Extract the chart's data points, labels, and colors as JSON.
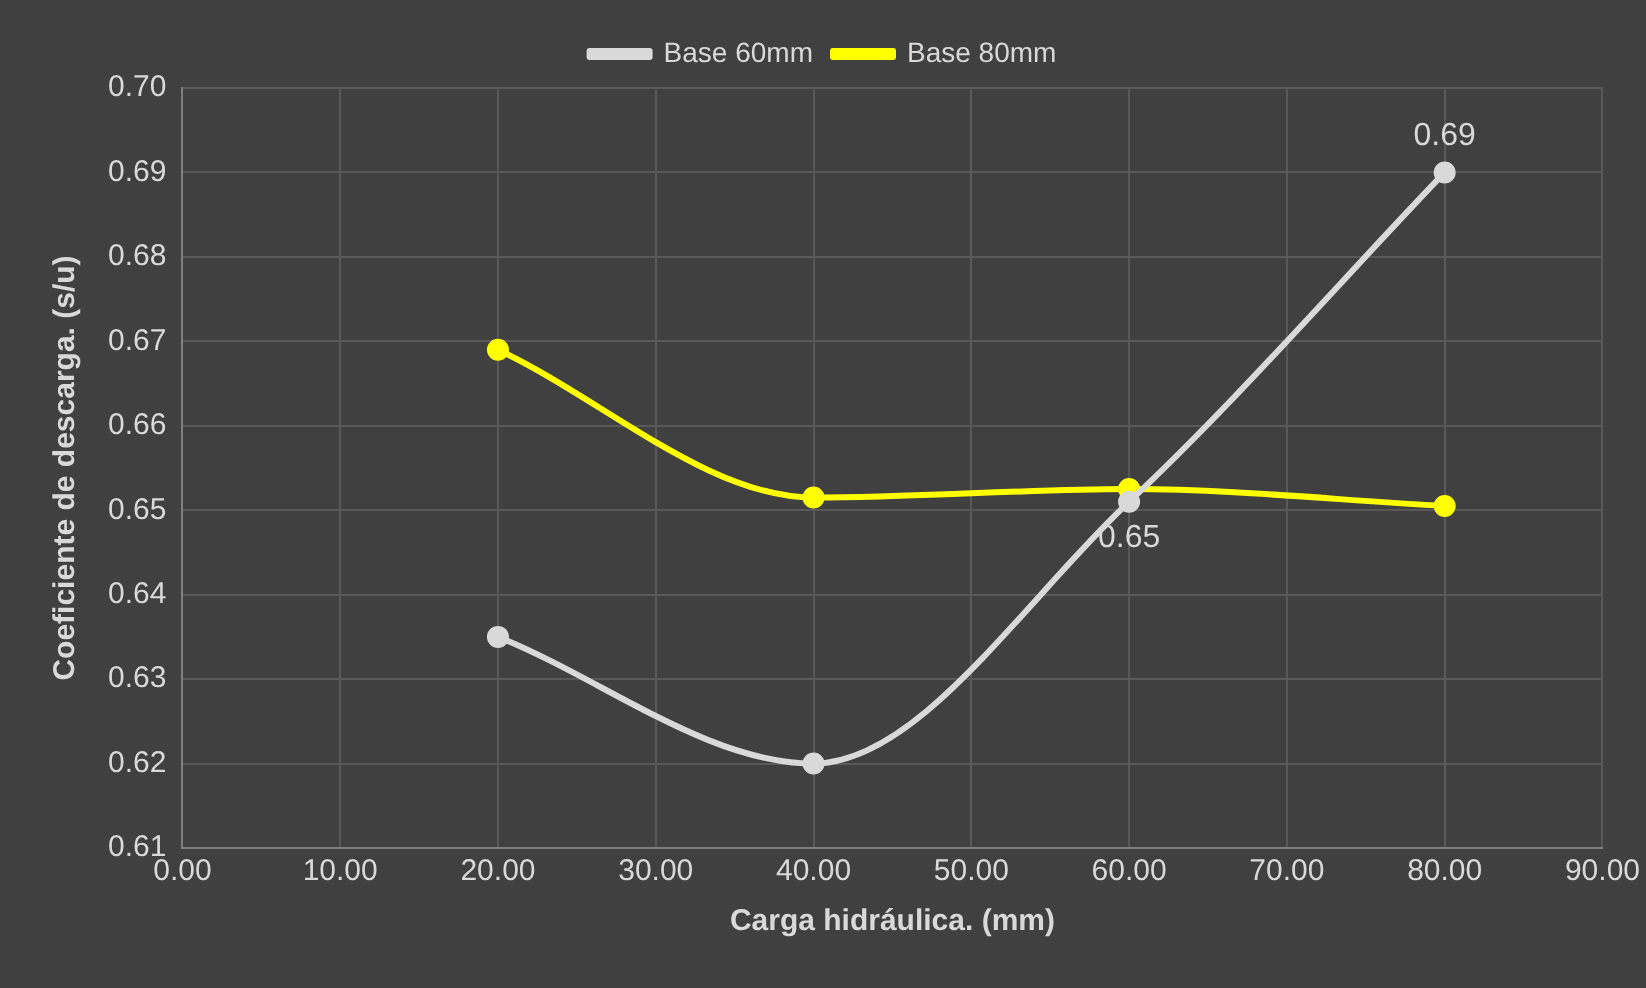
{
  "chart_data": {
    "type": "line",
    "xlabel": "Carga hidráulica. (mm)",
    "ylabel": "Coeficiente de descarga. (s/u)",
    "x": [
      20,
      40,
      60,
      80
    ],
    "series": [
      {
        "name": "Base 60mm",
        "color": "#d9d9d9",
        "values": [
          0.635,
          0.62,
          0.651,
          0.69
        ],
        "value_labels": [
          null,
          null,
          "0.65",
          "0.69"
        ]
      },
      {
        "name": "Base 80mm",
        "color": "#ffff00",
        "values": [
          0.669,
          0.6515,
          0.6525,
          0.6505
        ]
      }
    ],
    "xlim": [
      0,
      90
    ],
    "xticks": [
      {
        "value": 0,
        "label": "0.00"
      },
      {
        "value": 10,
        "label": "10.00"
      },
      {
        "value": 20,
        "label": "20.00"
      },
      {
        "value": 30,
        "label": "30.00"
      },
      {
        "value": 40,
        "label": "40.00"
      },
      {
        "value": 50,
        "label": "50.00"
      },
      {
        "value": 60,
        "label": "60.00"
      },
      {
        "value": 70,
        "label": "70.00"
      },
      {
        "value": 80,
        "label": "80.00"
      },
      {
        "value": 90,
        "label": "90.00"
      }
    ],
    "ylim": [
      0.61,
      0.7
    ],
    "yticks": [
      {
        "value": 0.61,
        "label": "0.61"
      },
      {
        "value": 0.62,
        "label": "0.62"
      },
      {
        "value": 0.63,
        "label": "0.63"
      },
      {
        "value": 0.64,
        "label": "0.64"
      },
      {
        "value": 0.65,
        "label": "0.65"
      },
      {
        "value": 0.66,
        "label": "0.66"
      },
      {
        "value": 0.67,
        "label": "0.67"
      },
      {
        "value": 0.68,
        "label": "0.68"
      },
      {
        "value": 0.69,
        "label": "0.69"
      },
      {
        "value": 0.7,
        "label": "0.70"
      }
    ],
    "grid": true,
    "legend": "top",
    "marker": "circle",
    "line_style": "solid"
  }
}
